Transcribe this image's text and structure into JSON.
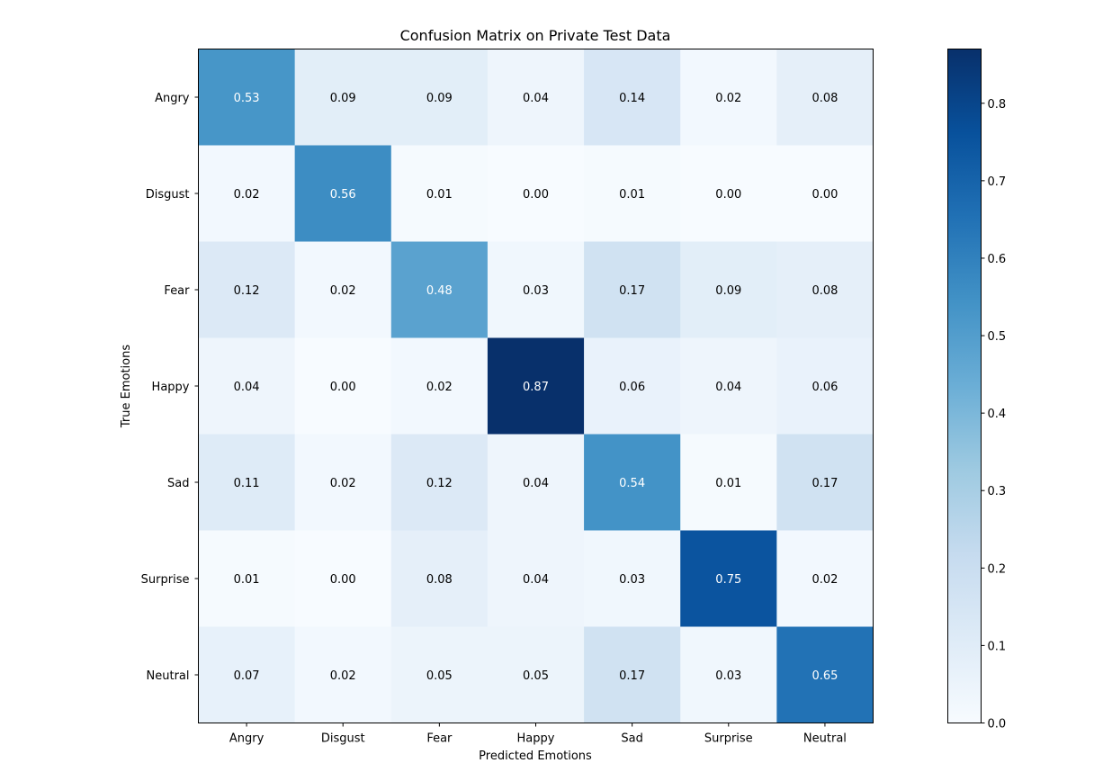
{
  "chart_data": {
    "type": "heatmap",
    "title": "Confusion Matrix on Private Test Data",
    "xlabel": "Predicted Emotions",
    "ylabel": "True Emotions",
    "x_categories": [
      "Angry",
      "Disgust",
      "Fear",
      "Happy",
      "Sad",
      "Surprise",
      "Neutral"
    ],
    "y_categories": [
      "Angry",
      "Disgust",
      "Fear",
      "Happy",
      "Sad",
      "Surprise",
      "Neutral"
    ],
    "values": [
      [
        0.53,
        0.09,
        0.09,
        0.04,
        0.14,
        0.02,
        0.08
      ],
      [
        0.02,
        0.56,
        0.01,
        0.0,
        0.01,
        0.0,
        0.0
      ],
      [
        0.12,
        0.02,
        0.48,
        0.03,
        0.17,
        0.09,
        0.08
      ],
      [
        0.04,
        0.0,
        0.02,
        0.87,
        0.06,
        0.04,
        0.06
      ],
      [
        0.11,
        0.02,
        0.12,
        0.04,
        0.54,
        0.01,
        0.17
      ],
      [
        0.01,
        0.0,
        0.08,
        0.04,
        0.03,
        0.75,
        0.02
      ],
      [
        0.07,
        0.02,
        0.05,
        0.05,
        0.17,
        0.03,
        0.65
      ]
    ],
    "value_format_decimals": 2,
    "colormap": "Blues",
    "colormap_stops": [
      "#f7fbff",
      "#deebf7",
      "#c6dbef",
      "#9ecae1",
      "#6baed6",
      "#4292c6",
      "#2171b5",
      "#08519c",
      "#08306b"
    ],
    "color_range": [
      0.0,
      0.87
    ],
    "colorbar": {
      "ticks": [
        0.0,
        0.1,
        0.2,
        0.3,
        0.4,
        0.5,
        0.6,
        0.7,
        0.8
      ],
      "tick_labels": [
        "0.0",
        "0.1",
        "0.2",
        "0.3",
        "0.4",
        "0.5",
        "0.6",
        "0.7",
        "0.8"
      ]
    },
    "cell_text_threshold": 0.435,
    "cell_text_light": "#ffffff",
    "cell_text_dark": "#000000"
  }
}
